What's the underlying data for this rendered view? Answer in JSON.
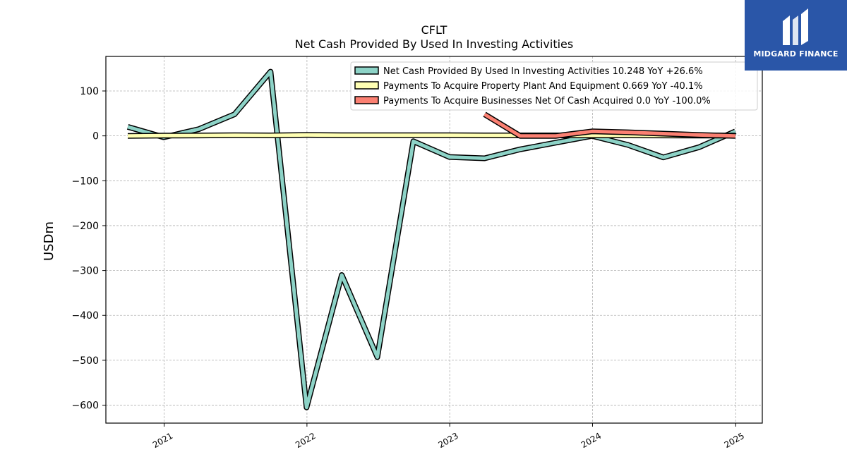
{
  "chart_data": {
    "type": "line",
    "title": "CFLT",
    "subtitle": "Net Cash Provided By Used In Investing Activities",
    "ylabel": "USDm",
    "xlabel": "",
    "ylim": [
      -640,
      177
    ],
    "xlim": [
      "2020-08-05",
      "2025-03-10"
    ],
    "yticks": [
      100,
      0,
      -100,
      -200,
      -300,
      -400,
      -500,
      -600
    ],
    "ytick_labels": [
      "100",
      "0",
      "−100",
      "−200",
      "−300",
      "−400",
      "−500",
      "−600"
    ],
    "xticks": [
      "2021-01-01",
      "2022-01-01",
      "2023-01-01",
      "2024-01-01",
      "2025-01-01"
    ],
    "xtick_labels": [
      "2021",
      "2022",
      "2023",
      "2024",
      "2025"
    ],
    "grid": true,
    "legend_position": "top-right",
    "series": [
      {
        "name": "Net Cash Provided By Used In Investing Activities",
        "legend_label": "Net Cash Provided By Used In Investing Activities  10.248 YoY +26.6%",
        "color": "#8dd3c7",
        "points": [
          [
            "2020-09-30",
            20
          ],
          [
            "2020-12-31",
            -3
          ],
          [
            "2021-03-31",
            15
          ],
          [
            "2021-06-30",
            48
          ],
          [
            "2021-09-30",
            143
          ],
          [
            "2021-12-31",
            -605
          ],
          [
            "2022-03-31",
            -310
          ],
          [
            "2022-06-30",
            -493
          ],
          [
            "2022-09-30",
            -12
          ],
          [
            "2022-12-31",
            -47
          ],
          [
            "2023-03-31",
            -50
          ],
          [
            "2023-06-30",
            -30
          ],
          [
            "2023-09-30",
            -15
          ],
          [
            "2023-12-31",
            0
          ],
          [
            "2024-03-31",
            -20
          ],
          [
            "2024-06-30",
            -48
          ],
          [
            "2024-09-30",
            -25
          ],
          [
            "2024-12-31",
            10
          ]
        ]
      },
      {
        "name": "Payments To Acquire Property Plant And Equipment",
        "legend_label": "Payments To Acquire Property Plant And Equipment  0.669 YoY -40.1%",
        "color": "#ffffb3",
        "points": [
          [
            "2020-09-30",
            0
          ],
          [
            "2020-12-31",
            0.5
          ],
          [
            "2021-03-31",
            0.8
          ],
          [
            "2021-06-30",
            1.5
          ],
          [
            "2021-09-30",
            1
          ],
          [
            "2021-12-31",
            2
          ],
          [
            "2022-03-31",
            1.5
          ],
          [
            "2022-06-30",
            1.5
          ],
          [
            "2022-09-30",
            1.5
          ],
          [
            "2022-12-31",
            1.5
          ],
          [
            "2023-03-31",
            1
          ],
          [
            "2023-06-30",
            1
          ],
          [
            "2023-09-30",
            1
          ],
          [
            "2023-12-31",
            1
          ],
          [
            "2024-03-31",
            1
          ],
          [
            "2024-06-30",
            0.8
          ],
          [
            "2024-09-30",
            0.6
          ],
          [
            "2024-12-31",
            0.669
          ]
        ]
      },
      {
        "name": "Payments To Acquire Businesses Net Of Cash Acquired",
        "legend_label": "Payments To Acquire Businesses Net Of Cash Acquired  0.0 YoY -100.0%",
        "color": "#fb8072",
        "points": [
          [
            "2023-03-31",
            48
          ],
          [
            "2023-06-30",
            0
          ],
          [
            "2023-09-30",
            0
          ],
          [
            "2023-12-31",
            10
          ],
          [
            "2024-03-31",
            8
          ],
          [
            "2024-06-30",
            5
          ],
          [
            "2024-09-30",
            2
          ],
          [
            "2024-12-31",
            0
          ]
        ]
      }
    ]
  },
  "logo": {
    "text": "MIDGARD FINANCE",
    "background": "#2a56a8"
  }
}
